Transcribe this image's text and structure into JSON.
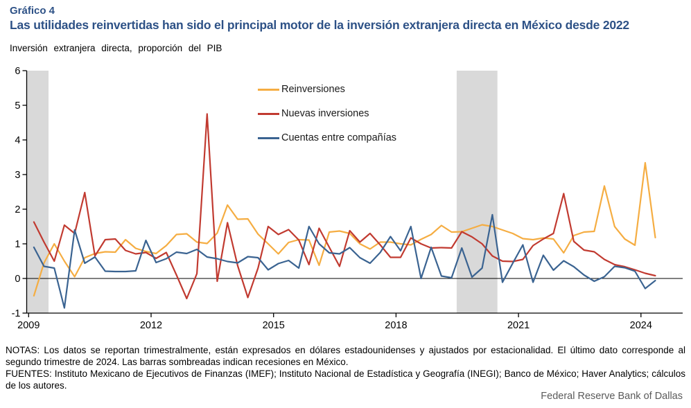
{
  "header": {
    "chart_label": "Gráfico 4",
    "title": "Las utilidades reinvertidas han sido el principal motor de la inversión extranjera directa en México desde 2022",
    "unit_label": "Inversión  extranjera  directa, proporción del PIB"
  },
  "colors": {
    "title": "#2d5186",
    "reinversiones": "#f5ad42",
    "nuevas_inversiones": "#c13a30",
    "cuentas_entre_companias": "#3a6391",
    "recession_band": "#d9d9d9",
    "axis": "#000000",
    "footer_text": "#5a5a5a"
  },
  "chart_data": {
    "type": "line",
    "title": "Gráfico 4. Las utilidades reinvertidas han sido el principal motor de la inversión extranjera directa en México desde 2022",
    "ylabel": "Inversión extranjera directa, proporción del PIB",
    "ylim": [
      -1,
      6
    ],
    "y_ticks": [
      6,
      5,
      4,
      3,
      2,
      1,
      0,
      -1
    ],
    "x_tick_labels": [
      "2009",
      "2012",
      "2015",
      "2018",
      "2021",
      "2024"
    ],
    "frequency": "quarterly",
    "x_start": "2009Q1",
    "x_end": "2024Q2",
    "grid": "off",
    "legend_position": "top-center-inside",
    "recession_spans_quarter_index": [
      [
        -0.74,
        1.44
      ],
      [
        41.5,
        45.5
      ]
    ],
    "series": [
      {
        "name": "Reinversiones",
        "color_key": "reinversiones",
        "values": [
          -0.5,
          0.45,
          1.0,
          0.5,
          0.05,
          0.6,
          0.72,
          0.77,
          0.76,
          1.12,
          0.87,
          0.78,
          0.72,
          0.95,
          1.27,
          1.29,
          1.05,
          1.01,
          1.31,
          2.12,
          1.71,
          1.72,
          1.28,
          1.0,
          0.71,
          1.04,
          1.12,
          1.11,
          0.38,
          1.34,
          1.37,
          1.3,
          1.0,
          0.85,
          1.05,
          1.05,
          1.0,
          0.97,
          1.13,
          1.27,
          1.53,
          1.34,
          1.35,
          1.45,
          1.55,
          1.5,
          1.4,
          1.3,
          1.15,
          1.12,
          1.17,
          1.14,
          0.74,
          1.24,
          1.34,
          1.36,
          2.67,
          1.5,
          1.14,
          0.96,
          3.34,
          1.18
        ]
      },
      {
        "name": "Nuevas inversiones",
        "color_key": "nuevas_inversiones",
        "values": [
          1.63,
          1.05,
          0.5,
          1.54,
          1.3,
          2.48,
          0.65,
          1.12,
          1.14,
          0.81,
          0.71,
          0.75,
          0.58,
          0.75,
          0.1,
          -0.58,
          0.14,
          4.75,
          -0.08,
          1.61,
          0.37,
          -0.55,
          0.3,
          1.5,
          1.27,
          1.41,
          1.11,
          0.4,
          1.45,
          0.9,
          0.35,
          1.38,
          1.05,
          1.3,
          0.97,
          0.61,
          0.61,
          1.17,
          1.0,
          0.88,
          0.89,
          0.88,
          1.35,
          1.2,
          1.0,
          0.65,
          0.5,
          0.49,
          0.55,
          0.95,
          1.14,
          1.3,
          2.45,
          1.07,
          0.82,
          0.77,
          0.55,
          0.4,
          0.34,
          0.25,
          0.15,
          0.08
        ]
      },
      {
        "name": "Cuentas entre compañías",
        "color_key": "cuentas_entre_companias",
        "values": [
          0.9,
          0.35,
          0.3,
          -0.85,
          1.4,
          0.44,
          0.62,
          0.21,
          0.2,
          0.2,
          0.22,
          1.1,
          0.46,
          0.57,
          0.76,
          0.72,
          0.84,
          0.62,
          0.57,
          0.49,
          0.45,
          0.63,
          0.6,
          0.25,
          0.43,
          0.52,
          0.3,
          1.5,
          1.0,
          0.74,
          0.71,
          0.89,
          0.6,
          0.44,
          0.75,
          1.21,
          0.8,
          1.5,
          0.0,
          0.9,
          0.07,
          0.02,
          0.88,
          0.04,
          0.3,
          1.84,
          -0.11,
          0.44,
          0.97,
          -0.11,
          0.67,
          0.24,
          0.51,
          0.34,
          0.1,
          -0.08,
          0.05,
          0.35,
          0.31,
          0.21,
          -0.29,
          -0.06
        ]
      }
    ]
  },
  "notes": {
    "notas": "NOTAS: Los datos se reportan trimestralmente, están expresados en dólares estadounidenses y ajustados por estacionalidad. El último dato corresponde al segundo trimestre de 2024. Las barras sombreadas indican recesiones en México.",
    "fuentes": "FUENTES: Instituto Mexicano de Ejecutivos de Finanzas (IMEF); Instituto Nacional de Estadística y Geografía (INEGI); Banco de México; Haver Analytics; cálculos de los autores."
  },
  "footer": {
    "text": "Federal Reserve Bank of Dallas"
  }
}
